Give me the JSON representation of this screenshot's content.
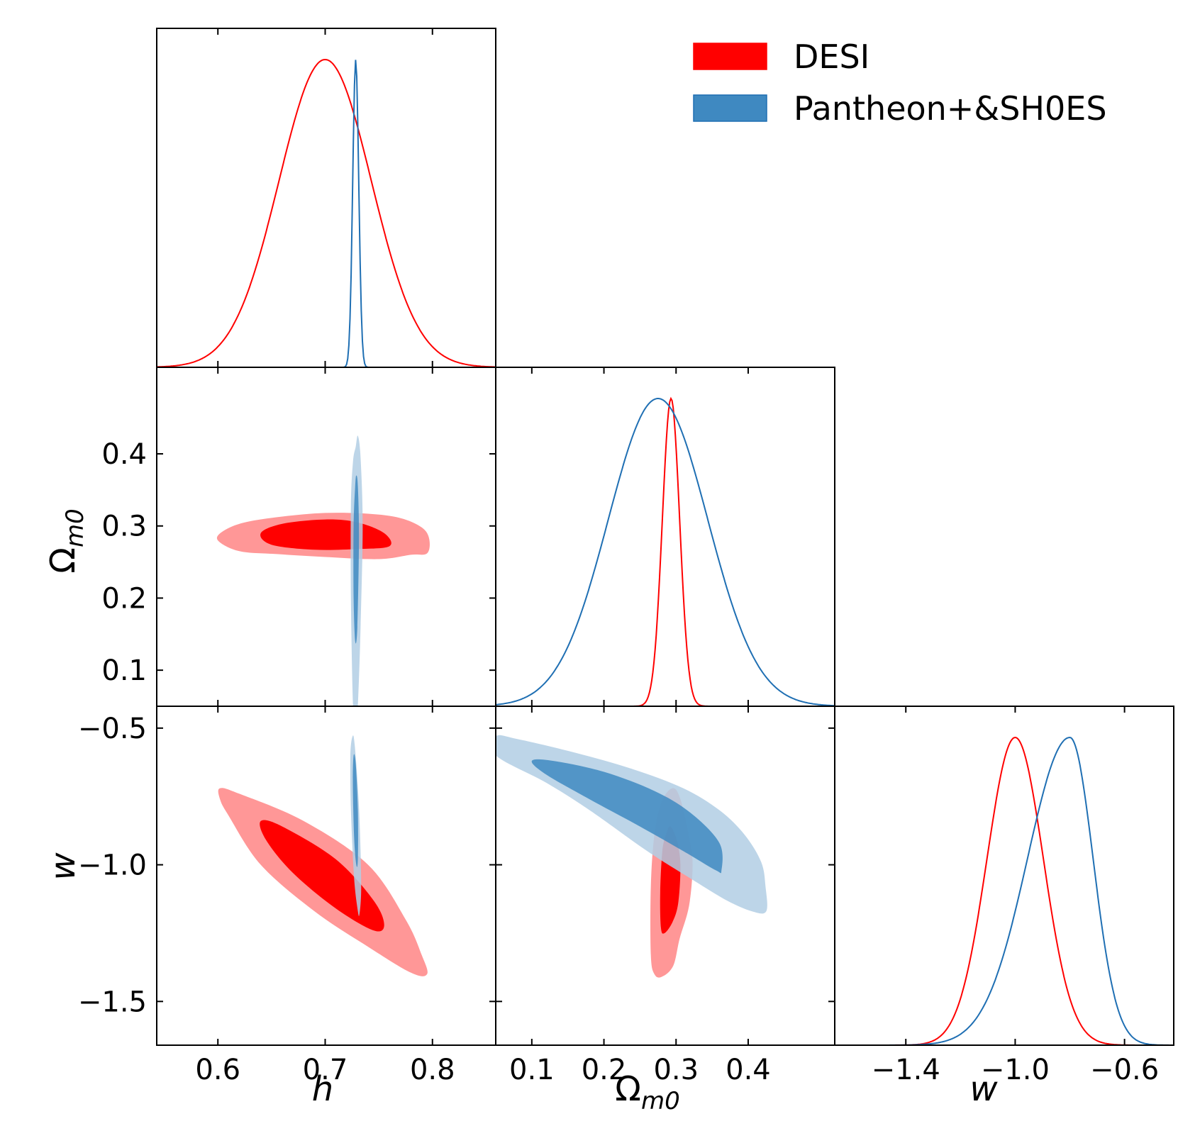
{
  "chart_data": {
    "type": "corner",
    "parameters": [
      {
        "name": "h",
        "label": "h",
        "range": [
          0.543,
          0.859
        ],
        "ticks": [
          0.6,
          0.7,
          0.8
        ],
        "tick_labels": [
          "0.6",
          "0.7",
          "0.8"
        ]
      },
      {
        "name": "Om",
        "label": "Ω",
        "label_sub": "m0",
        "range": [
          0.05,
          0.52
        ],
        "ticks": [
          0.1,
          0.2,
          0.3,
          0.4
        ],
        "tick_labels": [
          "0.1",
          "0.2",
          "0.3",
          "0.4"
        ]
      },
      {
        "name": "w",
        "label": "w",
        "range": [
          -1.66,
          -0.42
        ],
        "ticks": [
          -1.5,
          -1.0,
          -0.5
        ],
        "tick_labels": [
          "−1.5",
          "−1.0",
          "−0.5"
        ],
        "diag_ticks": [
          -1.4,
          -1.0,
          -0.6
        ],
        "diag_tick_labels": [
          "−1.4",
          "−1.0",
          "−0.6"
        ]
      }
    ],
    "legend": {
      "position": "top-right",
      "entries": [
        {
          "label": "DESI",
          "color": "#ff0000"
        },
        {
          "label": "Pantheon+&SH0ES",
          "color": "#3f89c1"
        }
      ]
    },
    "series": [
      {
        "name": "DESI",
        "line_color": "#ff0000",
        "fill_68": "#ff0000",
        "fill_95": "#ff9797",
        "marginals": {
          "h": {
            "type": "gauss",
            "mean": 0.7,
            "sigma": 0.043
          },
          "Om": {
            "type": "gauss",
            "mean": 0.293,
            "sigma": 0.012
          },
          "w": {
            "type": "gauss",
            "mean": -1.0,
            "sigma": 0.103
          }
        },
        "contours": {
          "h-Om": {
            "c95": [
              [
                0.605,
                0.293
              ],
              [
                0.625,
                0.305
              ],
              [
                0.66,
                0.313
              ],
              [
                0.7,
                0.318
              ],
              [
                0.74,
                0.317
              ],
              [
                0.77,
                0.311
              ],
              [
                0.79,
                0.298
              ],
              [
                0.797,
                0.282
              ],
              [
                0.795,
                0.262
              ],
              [
                0.78,
                0.26
              ],
              [
                0.75,
                0.254
              ],
              [
                0.7,
                0.257
              ],
              [
                0.655,
                0.261
              ],
              [
                0.62,
                0.265
              ],
              [
                0.6,
                0.28
              ]
            ],
            "c68": [
              [
                0.64,
                0.29
              ],
              [
                0.66,
                0.303
              ],
              [
                0.7,
                0.309
              ],
              [
                0.73,
                0.305
              ],
              [
                0.755,
                0.29
              ],
              [
                0.76,
                0.272
              ],
              [
                0.73,
                0.268
              ],
              [
                0.69,
                0.267
              ],
              [
                0.65,
                0.274
              ]
            ]
          },
          "h-w": {
            "c95": [
              [
                0.602,
                -0.72
              ],
              [
                0.62,
                -0.74
              ],
              [
                0.68,
                -0.84
              ],
              [
                0.74,
                -1.0
              ],
              [
                0.775,
                -1.2
              ],
              [
                0.79,
                -1.33
              ],
              [
                0.795,
                -1.4
              ],
              [
                0.78,
                -1.395
              ],
              [
                0.74,
                -1.3
              ],
              [
                0.69,
                -1.17
              ],
              [
                0.64,
                -1.0
              ],
              [
                0.61,
                -0.82
              ],
              [
                0.602,
                -0.76
              ]
            ],
            "c68": [
              [
                0.64,
                -0.84
              ],
              [
                0.66,
                -0.86
              ],
              [
                0.71,
                -0.98
              ],
              [
                0.745,
                -1.13
              ],
              [
                0.755,
                -1.22
              ],
              [
                0.745,
                -1.24
              ],
              [
                0.71,
                -1.16
              ],
              [
                0.67,
                -1.03
              ],
              [
                0.645,
                -0.91
              ]
            ]
          },
          "Om-w": {
            "c95": [
              [
                0.295,
                -0.72
              ],
              [
                0.306,
                -0.76
              ],
              [
                0.318,
                -0.9
              ],
              [
                0.323,
                -1.0
              ],
              [
                0.318,
                -1.15
              ],
              [
                0.305,
                -1.27
              ],
              [
                0.296,
                -1.37
              ],
              [
                0.28,
                -1.41
              ],
              [
                0.27,
                -1.4
              ],
              [
                0.265,
                -1.33
              ],
              [
                0.265,
                -1.08
              ],
              [
                0.27,
                -0.89
              ],
              [
                0.28,
                -0.77
              ]
            ],
            "c68": [
              [
                0.292,
                -0.86
              ],
              [
                0.301,
                -0.91
              ],
              [
                0.306,
                -1.0
              ],
              [
                0.303,
                -1.14
              ],
              [
                0.295,
                -1.21
              ],
              [
                0.284,
                -1.25
              ],
              [
                0.279,
                -1.23
              ],
              [
                0.278,
                -1.1
              ],
              [
                0.281,
                -0.95
              ],
              [
                0.286,
                -0.89
              ]
            ]
          }
        }
      },
      {
        "name": "Pantheon+&SH0ES",
        "line_color": "#1f6fb3",
        "fill_68": "#3f89c1",
        "fill_95": "#b1cee4",
        "marginals": {
          "h": {
            "type": "gauss",
            "mean": 0.7285,
            "sigma": 0.0028
          },
          "Om": {
            "type": "gauss",
            "mean": 0.275,
            "sigma": 0.069
          },
          "w": {
            "type": "skew",
            "mode": -0.8,
            "sigma_left": 0.155,
            "sigma_right": 0.085
          }
        },
        "contours": {
          "h-Om": {
            "c95": [
              [
                0.7285,
                0.41
              ],
              [
                0.7305,
                0.425
              ],
              [
                0.733,
                0.395
              ],
              [
                0.735,
                0.3
              ],
              [
                0.733,
                0.16
              ],
              [
                0.731,
                0.07
              ],
              [
                0.729,
                0.02
              ],
              [
                0.726,
                0.05
              ],
              [
                0.724,
                0.2
              ],
              [
                0.724,
                0.33
              ],
              [
                0.726,
                0.39
              ]
            ],
            "c68": [
              [
                0.729,
                0.37
              ],
              [
                0.7305,
                0.355
              ],
              [
                0.7315,
                0.28
              ],
              [
                0.73,
                0.16
              ],
              [
                0.728,
                0.14
              ],
              [
                0.7265,
                0.2
              ],
              [
                0.7265,
                0.3
              ],
              [
                0.728,
                0.355
              ]
            ]
          },
          "h-w": {
            "c95": [
              [
                0.7255,
                -0.53
              ],
              [
                0.7275,
                -0.56
              ],
              [
                0.731,
                -0.75
              ],
              [
                0.733,
                -0.95
              ],
              [
                0.7335,
                -1.1
              ],
              [
                0.732,
                -1.18
              ],
              [
                0.7305,
                -1.17
              ],
              [
                0.727,
                -1.05
              ],
              [
                0.724,
                -0.8
              ],
              [
                0.7235,
                -0.6
              ]
            ],
            "c68": [
              [
                0.7265,
                -0.6
              ],
              [
                0.7285,
                -0.63
              ],
              [
                0.7305,
                -0.8
              ],
              [
                0.7305,
                -0.98
              ],
              [
                0.729,
                -1.0
              ],
              [
                0.727,
                -0.9
              ],
              [
                0.7258,
                -0.7
              ]
            ]
          },
          "Om-w": {
            "c95": [
              [
                0.05,
                -0.53
              ],
              [
                0.08,
                -0.54
              ],
              [
                0.16,
                -0.59
              ],
              [
                0.24,
                -0.65
              ],
              [
                0.31,
                -0.72
              ],
              [
                0.36,
                -0.8
              ],
              [
                0.395,
                -0.89
              ],
              [
                0.418,
                -0.99
              ],
              [
                0.424,
                -1.08
              ],
              [
                0.425,
                -1.17
              ],
              [
                0.405,
                -1.17
              ],
              [
                0.37,
                -1.13
              ],
              [
                0.32,
                -1.05
              ],
              [
                0.26,
                -0.95
              ],
              [
                0.18,
                -0.8
              ],
              [
                0.12,
                -0.7
              ],
              [
                0.05,
                -0.6
              ]
            ],
            "c68": [
              [
                0.1,
                -0.62
              ],
              [
                0.13,
                -0.62
              ],
              [
                0.2,
                -0.66
              ],
              [
                0.27,
                -0.73
              ],
              [
                0.32,
                -0.81
              ],
              [
                0.36,
                -0.92
              ],
              [
                0.363,
                -1.02
              ],
              [
                0.355,
                -1.02
              ],
              [
                0.31,
                -0.95
              ],
              [
                0.25,
                -0.86
              ],
              [
                0.18,
                -0.76
              ],
              [
                0.12,
                -0.67
              ]
            ]
          }
        }
      }
    ]
  }
}
